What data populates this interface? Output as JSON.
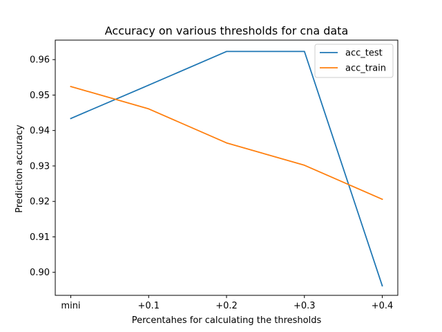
{
  "chart_data": {
    "type": "line",
    "title": "Accuracy on various thresholds for cna data",
    "xlabel": "Percentahes for calculating the thresholds",
    "ylabel": "Prediction accuracy",
    "categories": [
      "mini",
      "+0.1",
      "+0.2",
      "+0.3",
      "+0.4"
    ],
    "yticks": [
      "0.90",
      "0.91",
      "0.92",
      "0.93",
      "0.94",
      "0.95",
      "0.96"
    ],
    "ylim": [
      0.8935,
      0.9655
    ],
    "grid": false,
    "legend_position": "top-right",
    "series": [
      {
        "name": "acc_test",
        "color": "#1f77b4",
        "values": [
          0.9434,
          0.9528,
          0.9623,
          0.9623,
          0.8962
        ]
      },
      {
        "name": "acc_train",
        "color": "#ff7f0e",
        "values": [
          0.9524,
          0.9461,
          0.9365,
          0.9302,
          0.9206
        ]
      }
    ]
  }
}
